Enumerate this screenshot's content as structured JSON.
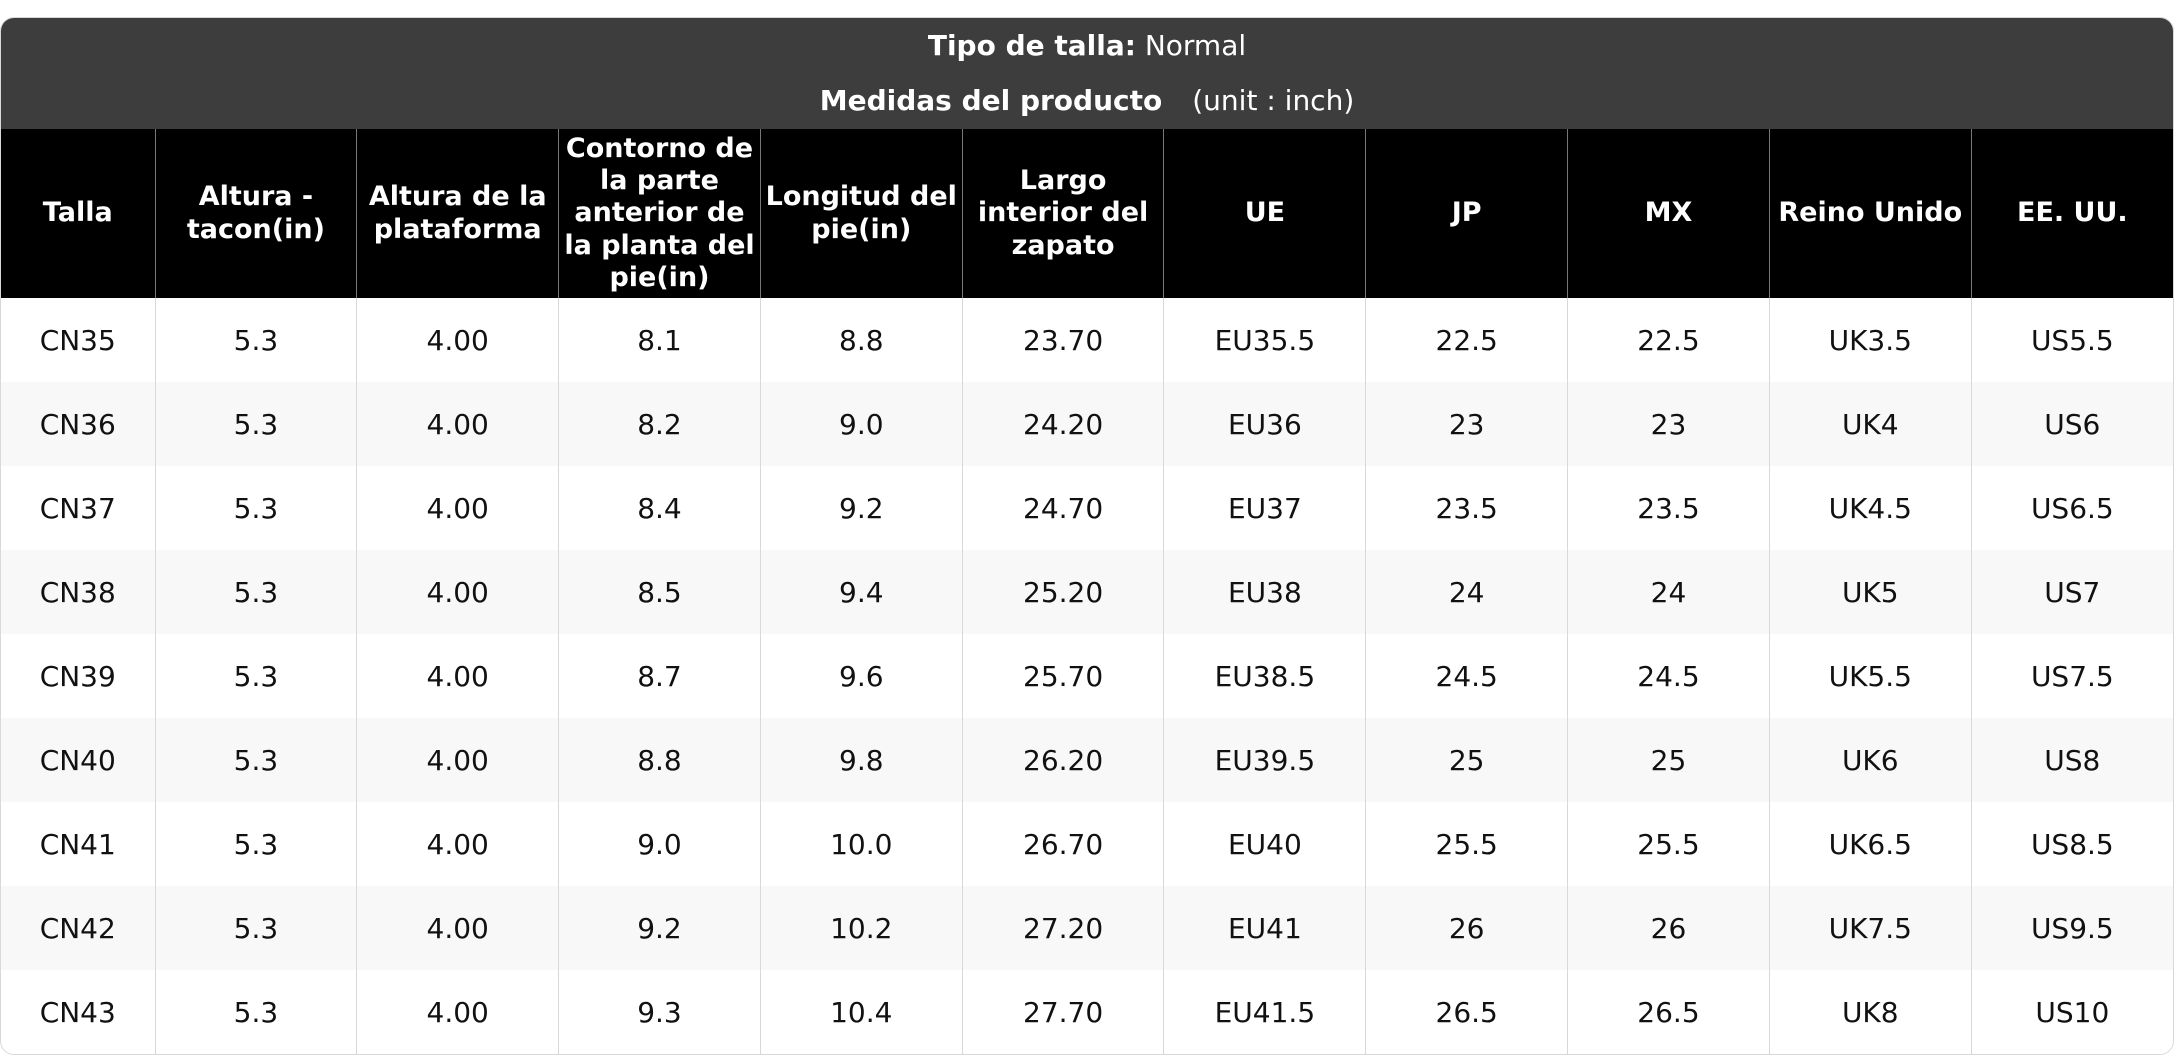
{
  "header": {
    "size_type_label": "Tipo de talla:",
    "size_type": "Normal",
    "title": "Medidas del producto",
    "unit": "(unit : inch)"
  },
  "table": {
    "columns": [
      "Talla",
      "Altura - tacon(in)",
      "Altura de la plataforma",
      "Contorno de la parte anterior de la planta del pie(in)",
      "Longitud del pie(in)",
      "Largo interior del zapato",
      "UE",
      "JP",
      "MX",
      "Reino Unido",
      "EE. UU."
    ],
    "rows": [
      [
        "CN35",
        "5.3",
        "4.00",
        "8.1",
        "8.8",
        "23.70",
        "EU35.5",
        "22.5",
        "22.5",
        "UK3.5",
        "US5.5"
      ],
      [
        "CN36",
        "5.3",
        "4.00",
        "8.2",
        "9.0",
        "24.20",
        "EU36",
        "23",
        "23",
        "UK4",
        "US6"
      ],
      [
        "CN37",
        "5.3",
        "4.00",
        "8.4",
        "9.2",
        "24.70",
        "EU37",
        "23.5",
        "23.5",
        "UK4.5",
        "US6.5"
      ],
      [
        "CN38",
        "5.3",
        "4.00",
        "8.5",
        "9.4",
        "25.20",
        "EU38",
        "24",
        "24",
        "UK5",
        "US7"
      ],
      [
        "CN39",
        "5.3",
        "4.00",
        "8.7",
        "9.6",
        "25.70",
        "EU38.5",
        "24.5",
        "24.5",
        "UK5.5",
        "US7.5"
      ],
      [
        "CN40",
        "5.3",
        "4.00",
        "8.8",
        "9.8",
        "26.20",
        "EU39.5",
        "25",
        "25",
        "UK6",
        "US8"
      ],
      [
        "CN41",
        "5.3",
        "4.00",
        "9.0",
        "10.0",
        "26.70",
        "EU40",
        "25.5",
        "25.5",
        "UK6.5",
        "US8.5"
      ],
      [
        "CN42",
        "5.3",
        "4.00",
        "9.2",
        "10.2",
        "27.20",
        "EU41",
        "26",
        "26",
        "UK7.5",
        "US9.5"
      ],
      [
        "CN43",
        "5.3",
        "4.00",
        "9.3",
        "10.4",
        "27.70",
        "EU41.5",
        "26.5",
        "26.5",
        "UK8",
        "US10"
      ]
    ]
  }
}
